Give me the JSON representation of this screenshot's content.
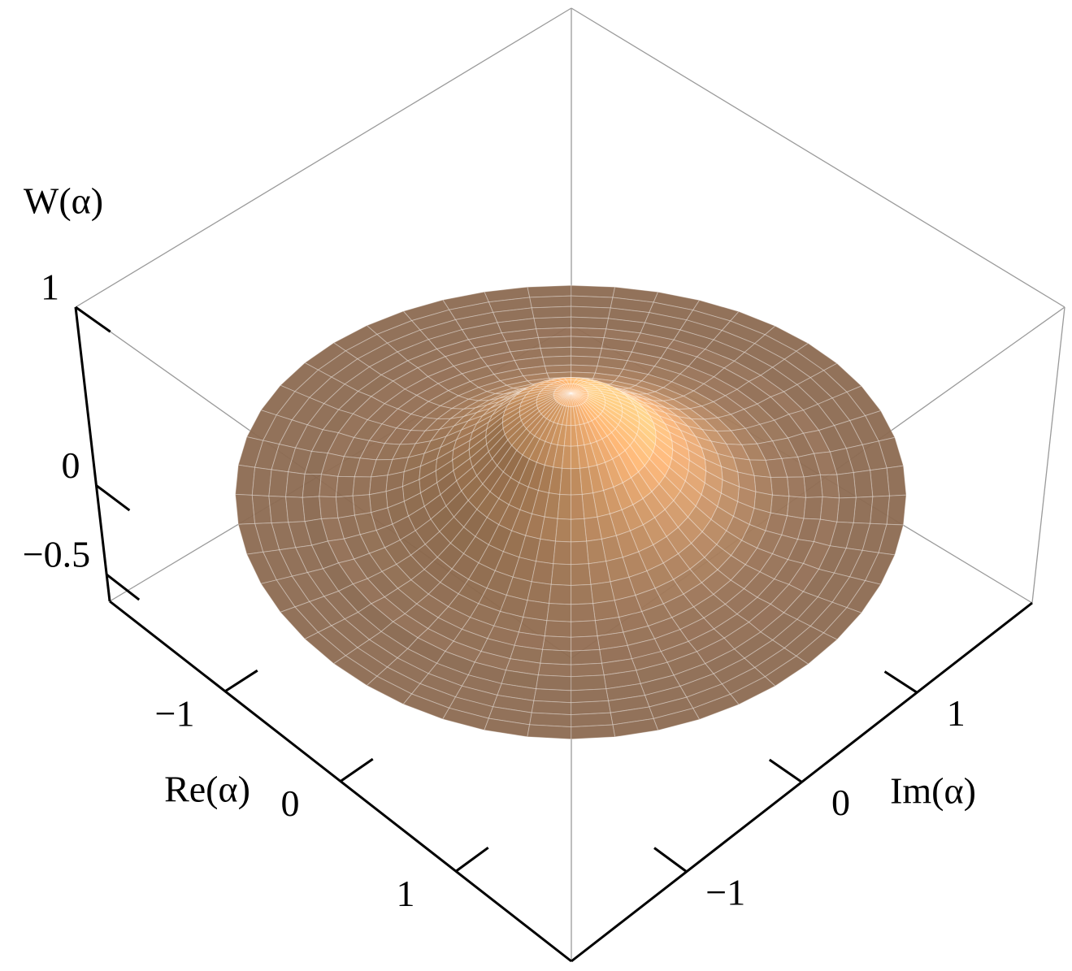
{
  "chart_data": {
    "type": "surface3d",
    "xlabel": "Re(α)",
    "ylabel": "Im(α)",
    "zlabel": "W(α)",
    "xlim": [
      -2,
      2
    ],
    "ylim": [
      -2,
      2
    ],
    "zlim": [
      -0.65,
      1
    ],
    "xticks": [
      {
        "value": -1,
        "label": "−1"
      },
      0,
      1
    ],
    "yticks": [
      {
        "value": -1,
        "label": "−1"
      },
      0,
      1
    ],
    "zticks": [
      {
        "value": -0.5,
        "label": "−0.5"
      },
      0,
      1
    ],
    "colormap": [
      "#8c6a51",
      "#fbb06b"
    ],
    "surface": {
      "r": [
        0,
        0.1,
        0.2,
        0.3,
        0.4,
        0.5,
        0.6,
        0.7,
        0.8,
        0.9,
        1,
        1.1,
        1.2,
        1.3,
        1.4,
        1.5,
        1.6,
        1.7,
        1.8,
        1.9,
        2
      ],
      "values": [
        0.6,
        0.59,
        0.55,
        0.5,
        0.44,
        0.36,
        0.29,
        0.23,
        0.17,
        0.12,
        0.08,
        0.05,
        0.03,
        0.02,
        0.01,
        0.01,
        0,
        0,
        0,
        0,
        0
      ]
    }
  }
}
